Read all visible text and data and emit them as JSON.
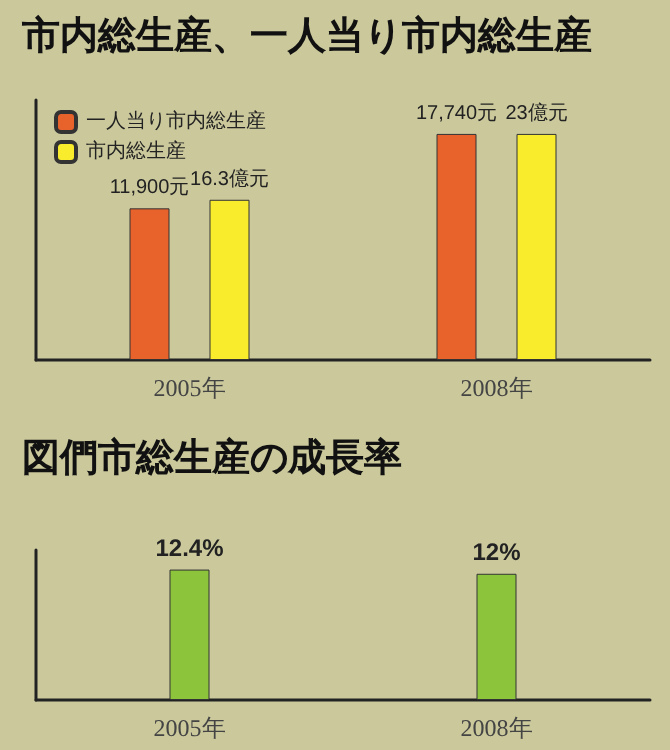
{
  "chart_data": [
    {
      "type": "bar",
      "title": "市内総生産、一人当り市内総生産",
      "categories": [
        "2005年",
        "2008年"
      ],
      "tick_labels": "x",
      "legend": "top left",
      "series": [
        {
          "name": "一人当り市内総生産",
          "color": "#e8622c",
          "values": [
            11900,
            17740
          ],
          "value_labels": [
            "11,900元",
            "17,740元"
          ]
        },
        {
          "name": "市内総生産",
          "color": "#f8ec2c",
          "values": [
            16.3,
            23
          ],
          "value_labels": [
            "16.3億元",
            "23億元"
          ],
          "axis": "y2"
        }
      ]
    },
    {
      "type": "bar",
      "title": "図們市総生産の成長率",
      "categories": [
        "2005年",
        "2008年"
      ],
      "tick_labels": "x",
      "series": [
        {
          "color": "#8cc43c",
          "values": [
            12.4,
            12
          ],
          "value_labels": [
            "12.4%",
            "12%"
          ]
        }
      ]
    }
  ]
}
